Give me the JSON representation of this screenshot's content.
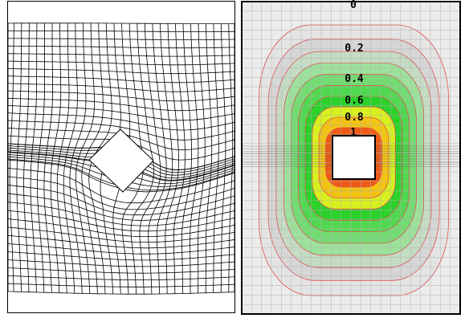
{
  "panels": {
    "left": {
      "content": "deformed-mesh",
      "grid_columns": 30,
      "grid_rows": 34,
      "line_color": "#000000",
      "hole_shape": "rotated-square"
    },
    "right": {
      "content": "contour-field",
      "grid_columns": 22,
      "grid_rows": 33,
      "grid_line_color": "#b0b0b0",
      "contour_line_color": "#e05050",
      "hole_shape": "square"
    }
  },
  "contours": {
    "labels": [
      "0",
      "0.2",
      "0.4",
      "0.6",
      "0.8",
      "1"
    ],
    "levels": [
      {
        "value": 0.1,
        "color": "#e4e4e4"
      },
      {
        "value": 0.2,
        "color": "#d6d6d6"
      },
      {
        "value": 0.3,
        "color": "#c4dcc4"
      },
      {
        "value": 0.4,
        "color": "#9ce19c"
      },
      {
        "value": 0.5,
        "color": "#72dc72"
      },
      {
        "value": 0.6,
        "color": "#50d850"
      },
      {
        "value": 0.7,
        "color": "#2ad22a"
      },
      {
        "value": 0.8,
        "color": "#d8f01e"
      },
      {
        "value": 0.9,
        "color": "#f2c412"
      },
      {
        "value": 1.0,
        "color": "#ee5a14"
      }
    ]
  }
}
